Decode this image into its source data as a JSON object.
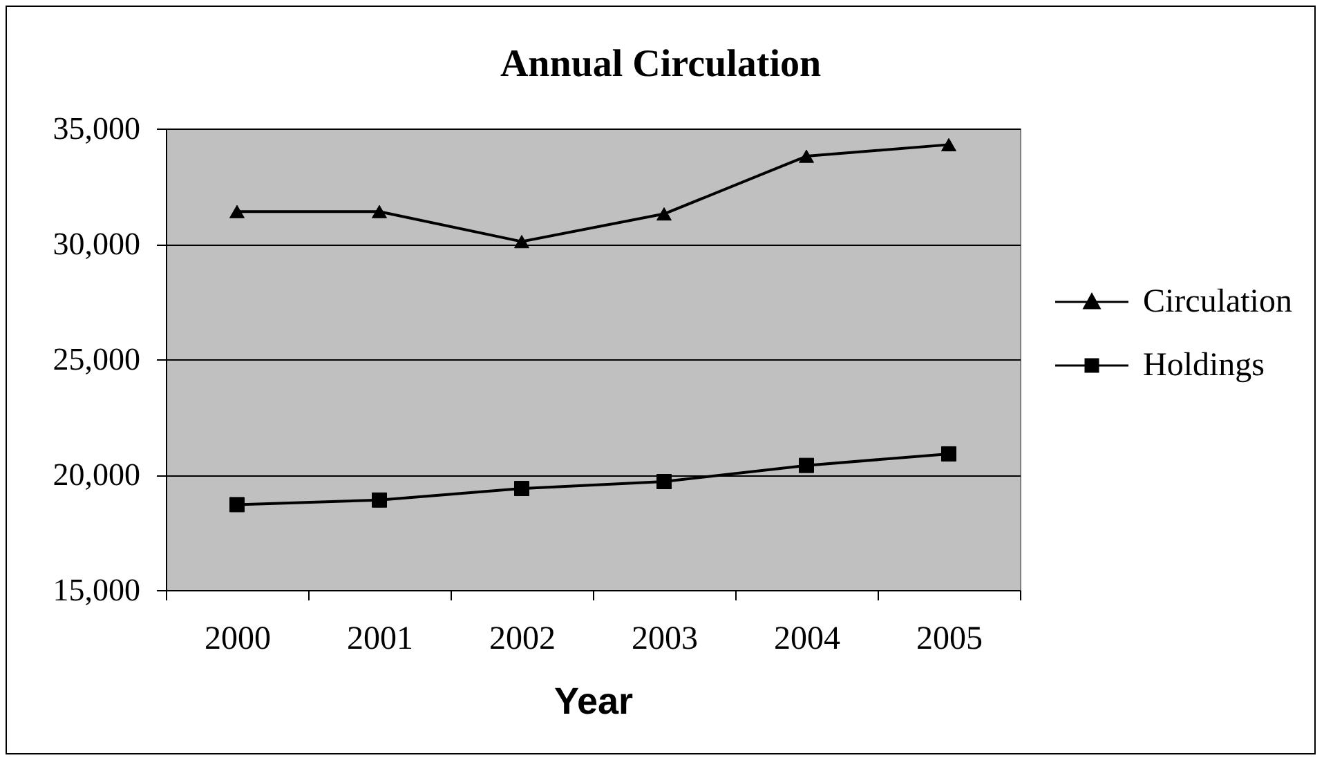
{
  "chart_data": {
    "type": "line",
    "title": "Annual Circulation",
    "xlabel": "Year",
    "categories": [
      "2000",
      "2001",
      "2002",
      "2003",
      "2004",
      "2005"
    ],
    "series": [
      {
        "name": "Circulation",
        "color": "#000000",
        "marker": "triangle",
        "values": [
          31400,
          31400,
          30100,
          31300,
          33800,
          34300
        ]
      },
      {
        "name": "Holdings",
        "color": "#000000",
        "marker": "square",
        "values": [
          18700,
          18900,
          19400,
          19700,
          20400,
          20900
        ]
      }
    ],
    "ylim": [
      15000,
      35000
    ],
    "yticks": [
      {
        "value": 15000,
        "label": "15,000"
      },
      {
        "value": 20000,
        "label": "20,000"
      },
      {
        "value": 25000,
        "label": "25,000"
      },
      {
        "value": 30000,
        "label": "30,000"
      },
      {
        "value": 35000,
        "label": "35,000"
      }
    ],
    "grid": "y",
    "legend": "right",
    "line_style": "solid"
  }
}
